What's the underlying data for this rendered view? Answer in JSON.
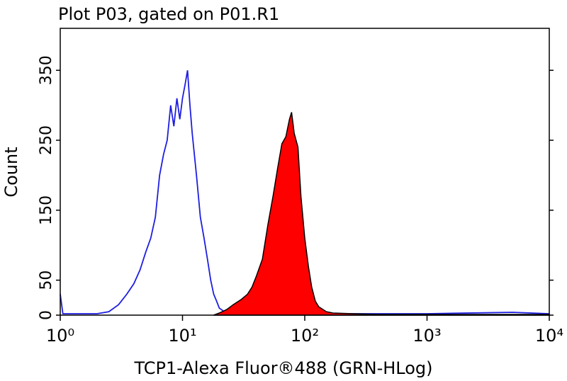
{
  "chart_data": {
    "type": "line",
    "title": "Plot P03, gated on P01.R1",
    "x_label": "TCP1-Alexa Fluor®488 (GRN-HLog)",
    "y_label": "Count",
    "x_log": true,
    "xlim": [
      1,
      10000
    ],
    "ylim": [
      0,
      410
    ],
    "xticks": [
      {
        "value": 1,
        "label": "10⁰"
      },
      {
        "value": 10,
        "label": "10¹"
      },
      {
        "value": 100,
        "label": "10²"
      },
      {
        "value": 1000,
        "label": "10³"
      },
      {
        "value": 10000,
        "label": "10⁴"
      }
    ],
    "yticks": [
      0,
      50,
      150,
      250,
      350
    ],
    "series": [
      {
        "color": "#1e1ee0",
        "filled": false,
        "x": [
          1,
          1.05,
          2,
          2.5,
          3,
          3.5,
          4,
          4.5,
          5,
          5.5,
          6,
          6.5,
          7,
          7.5,
          8,
          8.5,
          9,
          9.5,
          10,
          10.5,
          11,
          11.5,
          12,
          13,
          14,
          15,
          16,
          17,
          18,
          19,
          20,
          22,
          25,
          100,
          1000,
          5000,
          10000
        ],
        "values": [
          30,
          2,
          2,
          5,
          15,
          30,
          45,
          65,
          90,
          110,
          140,
          200,
          230,
          250,
          300,
          270,
          310,
          280,
          310,
          330,
          350,
          300,
          260,
          200,
          140,
          110,
          80,
          50,
          30,
          20,
          10,
          5,
          2,
          2,
          2,
          4,
          2
        ]
      },
      {
        "color": "#ff0000",
        "filled": true,
        "x": [
          18,
          20,
          23,
          26,
          30,
          34,
          37,
          40,
          45,
          50,
          55,
          60,
          65,
          70,
          75,
          78,
          82,
          88,
          93,
          100,
          107,
          114,
          122,
          130,
          150,
          170,
          250,
          400,
          10000
        ],
        "values": [
          0,
          3,
          8,
          15,
          22,
          30,
          40,
          55,
          80,
          130,
          170,
          210,
          245,
          255,
          280,
          290,
          260,
          240,
          170,
          110,
          70,
          40,
          20,
          12,
          5,
          3,
          2,
          1,
          1
        ]
      }
    ]
  }
}
